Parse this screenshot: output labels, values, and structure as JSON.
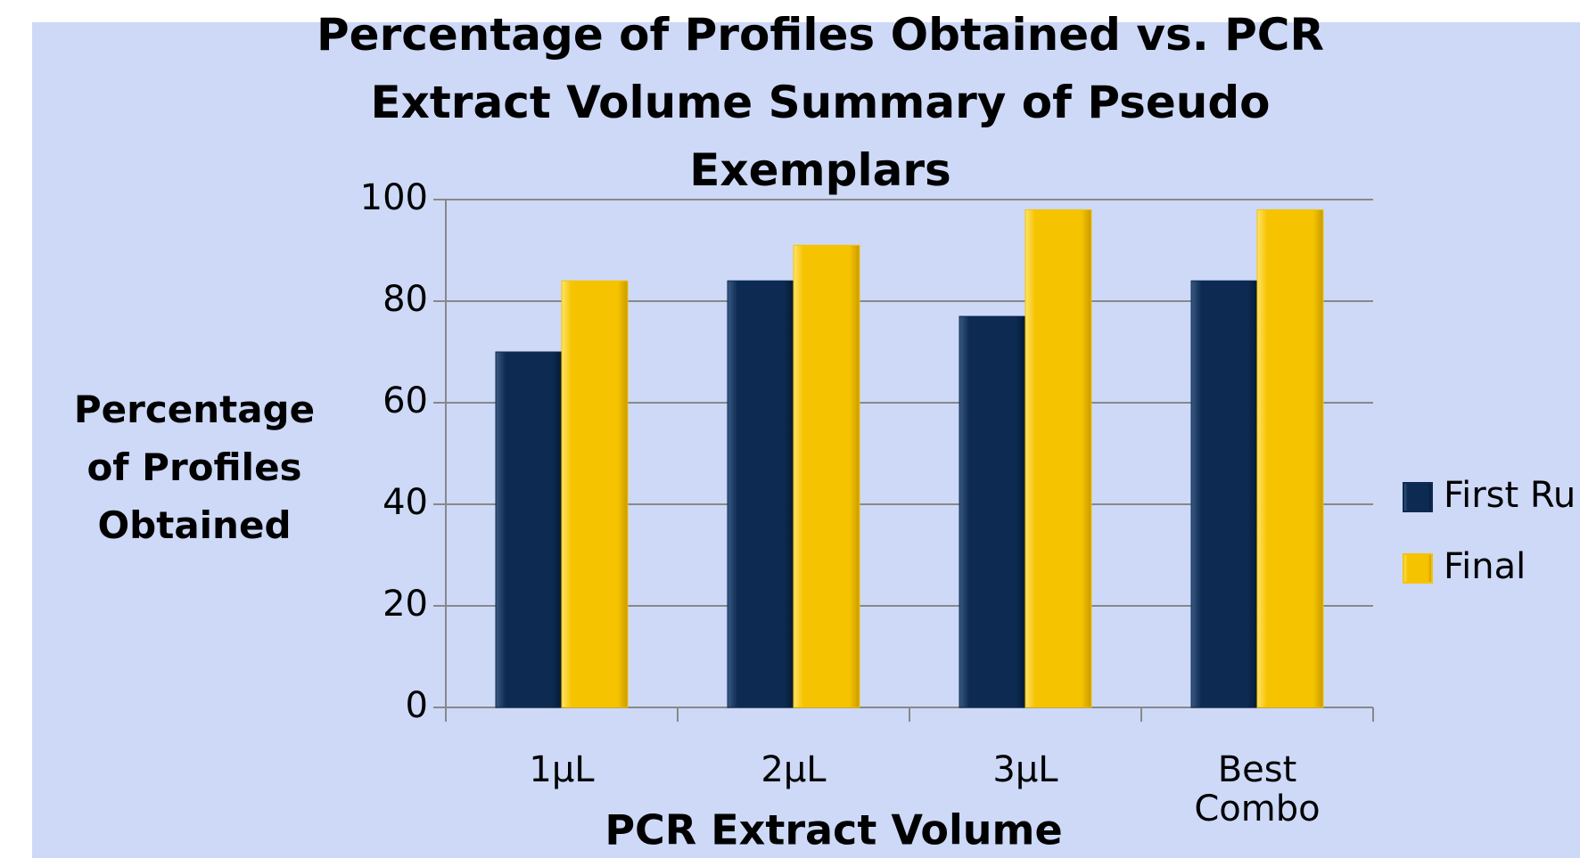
{
  "chart_data": {
    "type": "bar",
    "title": "Percentage of Profiles Obtained vs. PCR Extract Volume Summary of Pseudo Exemplars",
    "x_label": "PCR Extract Volume",
    "y_label": "Percentage of Profiles Obtained",
    "categories": [
      "1µL",
      "2µL",
      "3µL",
      "Best Combo"
    ],
    "series": [
      {
        "name": "First Ru",
        "color": "#0d2b52",
        "values": [
          70,
          84,
          77,
          84
        ]
      },
      {
        "name": "Final",
        "color": "#f5c300",
        "values": [
          84,
          91,
          98,
          98
        ]
      }
    ],
    "ylim": [
      0,
      100
    ],
    "yticks": [
      0,
      20,
      40,
      60,
      80,
      100
    ],
    "grid": true,
    "legend": "right"
  }
}
